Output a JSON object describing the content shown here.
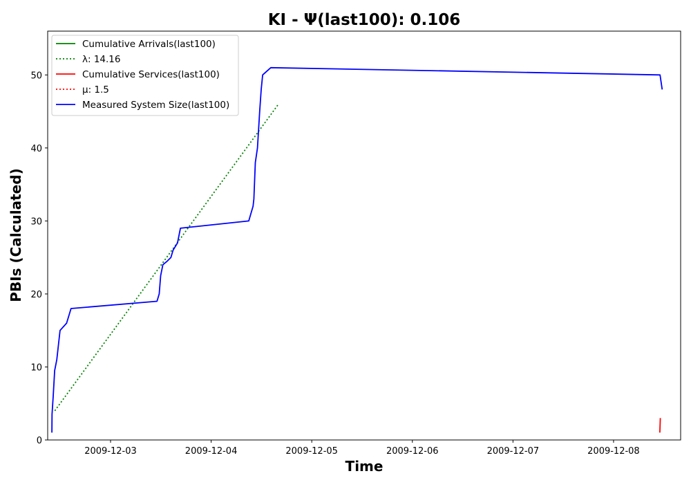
{
  "chart_data": {
    "type": "line",
    "title": "KI -  Ψ(last100): 0.106",
    "xlabel": "Time",
    "ylabel": "PBIs (Calculated)",
    "x_axis_type": "datetime",
    "xlim": [
      "2009-12-02 09:00",
      "2009-12-08 16:00"
    ],
    "ylim": [
      0,
      56
    ],
    "x_ticks": [
      "2009-12-03",
      "2009-12-04",
      "2009-12-05",
      "2009-12-06",
      "2009-12-07",
      "2009-12-08"
    ],
    "y_ticks": [
      0,
      10,
      20,
      30,
      40,
      50
    ],
    "grid": false,
    "legend_position": "top-left",
    "series": [
      {
        "name": "Cumulative Arrivals(last100)",
        "color": "#008000",
        "style": "solid",
        "points": []
      },
      {
        "name": "λ: 14.16",
        "legend_label": "λ: 14.16",
        "color": "#008000",
        "style": "dotted",
        "points": [
          [
            "2009-12-02 10:42",
            4
          ],
          [
            "2009-12-04 16:04",
            46
          ]
        ]
      },
      {
        "name": "Cumulative Services(last100)",
        "color": "#ff0000",
        "style": "solid",
        "points": [
          [
            "2009-12-08 11:02",
            1
          ],
          [
            "2009-12-08 11:09",
            3
          ]
        ]
      },
      {
        "name": "μ: 1.5",
        "legend_label": "μ: 1.5",
        "color": "#ff0000",
        "style": "dotted",
        "points": []
      },
      {
        "name": "Measured System Size(last100)",
        "color": "#0000ff",
        "style": "solid",
        "points": [
          [
            "2009-12-02 10:00",
            1
          ],
          [
            "2009-12-02 10:02",
            3.5
          ],
          [
            "2009-12-02 10:19",
            6
          ],
          [
            "2009-12-02 10:40",
            9.5
          ],
          [
            "2009-12-02 11:11",
            11
          ],
          [
            "2009-12-02 11:57",
            15
          ],
          [
            "2009-12-02 13:31",
            16
          ],
          [
            "2009-12-02 14:34",
            18
          ],
          [
            "2009-12-03 11:05",
            19
          ],
          [
            "2009-12-03 11:36",
            20
          ],
          [
            "2009-12-03 11:57",
            22.5
          ],
          [
            "2009-12-03 12:29",
            24
          ],
          [
            "2009-12-03 13:32",
            24.5
          ],
          [
            "2009-12-03 14:24",
            25
          ],
          [
            "2009-12-03 14:55",
            26
          ],
          [
            "2009-12-03 15:58",
            27
          ],
          [
            "2009-12-03 16:40",
            29
          ],
          [
            "2009-12-04 08:58",
            30
          ],
          [
            "2009-12-04 09:29",
            31
          ],
          [
            "2009-12-04 10:00",
            32
          ],
          [
            "2009-12-04 10:11",
            33
          ],
          [
            "2009-12-04 10:32",
            38
          ],
          [
            "2009-12-04 11:03",
            40
          ],
          [
            "2009-12-04 11:35",
            45
          ],
          [
            "2009-12-04 11:56",
            48
          ],
          [
            "2009-12-04 12:17",
            50
          ],
          [
            "2009-12-04 14:14",
            51
          ],
          [
            "2009-12-08 11:05",
            50
          ],
          [
            "2009-12-08 11:36",
            48
          ]
        ]
      }
    ]
  }
}
